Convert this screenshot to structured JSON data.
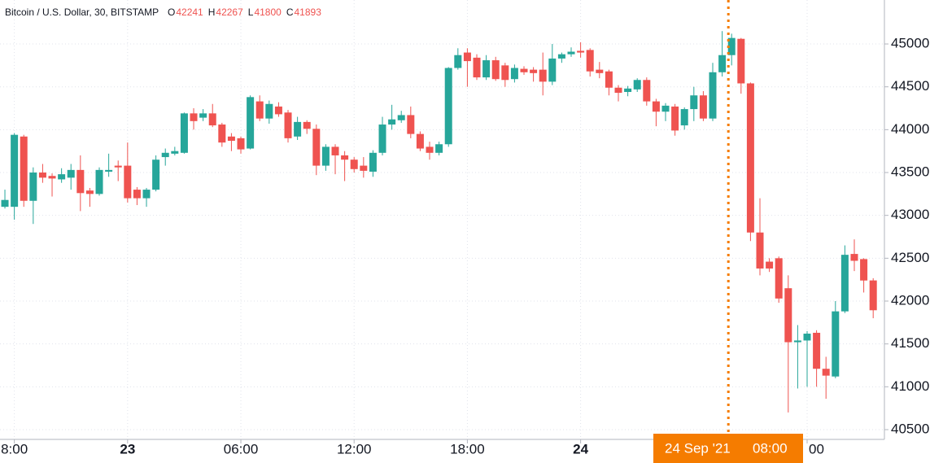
{
  "chart_data": {
    "type": "candlestick",
    "title": "Bitcoin / U.S. Dollar, 30, BITSTAMP",
    "ohlc_labels": [
      "O",
      "H",
      "L",
      "C"
    ],
    "ohlc_values": [
      42241,
      42267,
      41800,
      41893
    ],
    "up_color": "#26a69a",
    "down_color": "#ef5350",
    "grid": true,
    "open": [
      43100,
      43100,
      43920,
      43170,
      43500,
      43460,
      43420,
      43440,
      43530,
      43290,
      43250,
      43510,
      43580,
      43580,
      43300,
      43200,
      43300,
      43680,
      43720,
      43730,
      44190,
      44140,
      44190,
      44060,
      43920,
      43900,
      43780,
      44330,
      44130,
      44270,
      44200,
      43920,
      44090,
      44010,
      43580,
      43800,
      43700,
      43650,
      43580,
      43510,
      43730,
      44060,
      44110,
      44170,
      43950,
      43800,
      43730,
      43830,
      44720,
      44900,
      44840,
      44610,
      44810,
      44750,
      44590,
      44710,
      44700,
      44700,
      44560,
      44830,
      44880,
      44920,
      44930,
      44700,
      44680,
      44490,
      44440,
      44470,
      44580,
      44330,
      44210,
      44270,
      44050,
      44240,
      44400,
      44130,
      44670,
      44870,
      45060,
      44540,
      42800,
      42460,
      42500,
      42150,
      41520,
      41540,
      41630,
      41210,
      41120,
      41880,
      42550,
      42490,
      42241
    ],
    "high": [
      43300,
      43960,
      43940,
      43560,
      43600,
      43490,
      43550,
      43600,
      43700,
      43320,
      43560,
      43720,
      43640,
      43850,
      43330,
      43320,
      43700,
      43780,
      43800,
      44200,
      44250,
      44240,
      44300,
      44080,
      43960,
      43920,
      44400,
      44400,
      44340,
      44320,
      44230,
      44150,
      44110,
      44060,
      43830,
      43830,
      43750,
      43680,
      43680,
      43760,
      44150,
      44290,
      44220,
      44270,
      43980,
      43860,
      43860,
      44730,
      44950,
      44950,
      44880,
      44870,
      44850,
      44780,
      44760,
      44740,
      44730,
      44900,
      45000,
      44900,
      44960,
      45020,
      44950,
      44790,
      44700,
      44520,
      44510,
      44600,
      44610,
      44360,
      44310,
      44300,
      44260,
      44500,
      44450,
      44780,
      45150,
      45120,
      45070,
      44550,
      43200,
      42500,
      42520,
      42300,
      41720,
      41650,
      41660,
      41350,
      42000,
      42650,
      42720,
      42500,
      42267
    ],
    "low": [
      43080,
      42950,
      43100,
      42900,
      43380,
      43220,
      43380,
      43300,
      43050,
      43100,
      43230,
      43450,
      43400,
      43150,
      43120,
      43100,
      43280,
      43580,
      43700,
      43720,
      44000,
      44100,
      44030,
      43800,
      43750,
      43720,
      43770,
      44100,
      44070,
      44150,
      43850,
      43880,
      43950,
      43470,
      43520,
      43480,
      43400,
      43500,
      43440,
      43450,
      43700,
      44000,
      44080,
      43900,
      43750,
      43650,
      43700,
      43800,
      44700,
      44500,
      44580,
      44580,
      44570,
      44500,
      44550,
      44640,
      44560,
      44400,
      44520,
      44780,
      44850,
      44840,
      44620,
      44600,
      44400,
      44330,
      44390,
      44440,
      44280,
      44040,
      44100,
      43930,
      44000,
      44100,
      44100,
      44100,
      44620,
      44750,
      44420,
      42700,
      42300,
      42340,
      41980,
      40700,
      40980,
      41000,
      41000,
      40860,
      41100,
      41860,
      42350,
      42100,
      41800
    ],
    "close": [
      43180,
      43940,
      43170,
      43500,
      43440,
      43430,
      43480,
      43530,
      43260,
      43250,
      43530,
      43530,
      43560,
      43200,
      43200,
      43300,
      43650,
      43730,
      43750,
      44190,
      44100,
      44190,
      44050,
      43850,
      43870,
      43770,
      44380,
      44130,
      44300,
      44180,
      43900,
      44090,
      44010,
      43580,
      43800,
      43700,
      43650,
      43540,
      43520,
      43730,
      44060,
      44120,
      44170,
      43950,
      43780,
      43730,
      43830,
      44720,
      44870,
      44800,
      44610,
      44810,
      44590,
      44580,
      44720,
      44670,
      44660,
      44560,
      44830,
      44880,
      44910,
      44900,
      44680,
      44660,
      44490,
      44430,
      44480,
      44580,
      44330,
      44210,
      44280,
      43990,
      44240,
      44400,
      44130,
      44670,
      44870,
      45070,
      44540,
      42800,
      42380,
      42380,
      42030,
      41520,
      41540,
      41620,
      41210,
      41130,
      41880,
      42540,
      42470,
      42240,
      41893
    ],
    "xlim": [
      -0.52,
      93.19
    ],
    "xticks": [
      {
        "value": 1,
        "label": "8:00"
      },
      {
        "value": 13,
        "label": "23"
      },
      {
        "value": 25,
        "label": "06:00"
      },
      {
        "value": 37,
        "label": "12:00"
      },
      {
        "value": 49,
        "label": "18:00"
      },
      {
        "value": 61,
        "label": "24"
      },
      {
        "value": 85,
        "label": "00"
      }
    ],
    "ylim": [
      40386,
      45513
    ],
    "yticks": [
      40500,
      41000,
      41500,
      42000,
      42500,
      43000,
      43500,
      44000,
      44500,
      45000
    ],
    "crosshair": {
      "date": "24 Sep '21",
      "time": "08:00"
    }
  }
}
